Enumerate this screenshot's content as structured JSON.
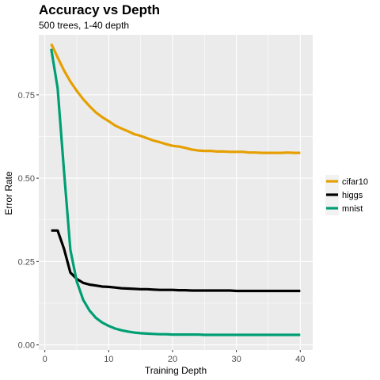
{
  "chart_data": {
    "type": "line",
    "title": "Accuracy vs Depth",
    "subtitle": "500 trees, 1-40 depth",
    "xlabel": "Training Depth",
    "ylabel": "Error Rate",
    "xlim": [
      -0.95,
      41.95
    ],
    "ylim": [
      -0.015,
      0.93
    ],
    "x_ticks": [
      0,
      10,
      20,
      30,
      40
    ],
    "x_tick_labels": [
      "0",
      "10",
      "20",
      "30",
      "40"
    ],
    "y_ticks": [
      0.0,
      0.25,
      0.5,
      0.75
    ],
    "y_tick_labels": [
      "0.00",
      "0.25",
      "0.50",
      "0.75"
    ],
    "grid": true,
    "legend_position": "right",
    "x": [
      1,
      2,
      3,
      4,
      5,
      6,
      7,
      8,
      9,
      10,
      11,
      12,
      13,
      14,
      15,
      16,
      17,
      18,
      19,
      20,
      21,
      22,
      23,
      24,
      25,
      26,
      27,
      28,
      29,
      30,
      31,
      32,
      33,
      34,
      35,
      36,
      37,
      38,
      39,
      40
    ],
    "series": [
      {
        "name": "cifar10",
        "color": "#E69F00",
        "values": [
          0.903,
          0.862,
          0.823,
          0.79,
          0.762,
          0.737,
          0.716,
          0.697,
          0.683,
          0.671,
          0.658,
          0.649,
          0.641,
          0.632,
          0.627,
          0.62,
          0.613,
          0.608,
          0.602,
          0.597,
          0.595,
          0.591,
          0.586,
          0.583,
          0.582,
          0.582,
          0.58,
          0.58,
          0.579,
          0.579,
          0.579,
          0.577,
          0.577,
          0.576,
          0.576,
          0.576,
          0.576,
          0.577,
          0.576,
          0.576
        ]
      },
      {
        "name": "higgs",
        "color": "#000000",
        "values": [
          0.343,
          0.343,
          0.288,
          0.217,
          0.198,
          0.186,
          0.181,
          0.178,
          0.175,
          0.174,
          0.172,
          0.17,
          0.169,
          0.168,
          0.167,
          0.167,
          0.166,
          0.165,
          0.165,
          0.165,
          0.164,
          0.164,
          0.163,
          0.163,
          0.163,
          0.163,
          0.163,
          0.163,
          0.163,
          0.162,
          0.162,
          0.162,
          0.162,
          0.162,
          0.162,
          0.162,
          0.162,
          0.162,
          0.162,
          0.162
        ]
      },
      {
        "name": "mnist",
        "color": "#009E73",
        "values": [
          0.888,
          0.77,
          0.52,
          0.285,
          0.19,
          0.135,
          0.103,
          0.081,
          0.067,
          0.057,
          0.049,
          0.044,
          0.04,
          0.037,
          0.035,
          0.034,
          0.033,
          0.032,
          0.032,
          0.031,
          0.031,
          0.031,
          0.031,
          0.031,
          0.03,
          0.03,
          0.03,
          0.03,
          0.03,
          0.03,
          0.03,
          0.03,
          0.03,
          0.03,
          0.03,
          0.03,
          0.03,
          0.03,
          0.03,
          0.03
        ]
      }
    ]
  }
}
